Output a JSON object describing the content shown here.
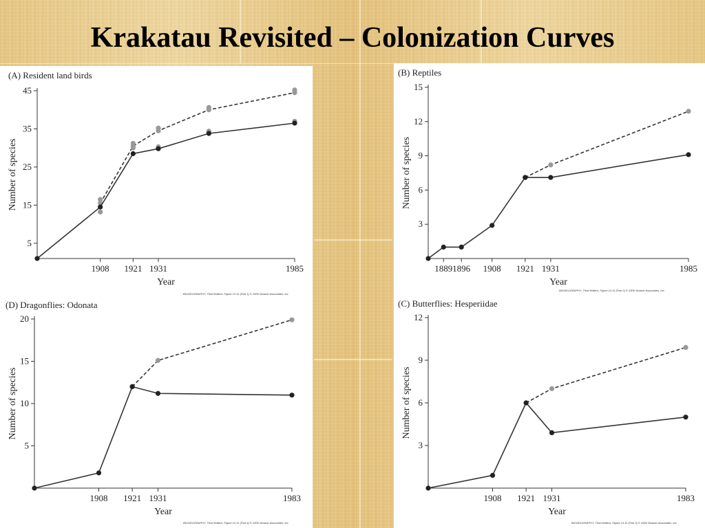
{
  "slide": {
    "title": "Krakatau Revisited – Colonization Curves"
  },
  "chart_data": [
    {
      "type": "line",
      "panel_label": "(A) Resident land birds",
      "xlabel": "Year",
      "ylabel": "Number of species",
      "x_ticks": [
        "1908",
        "1921",
        "1931",
        "1985"
      ],
      "y_ticks": [
        5,
        15,
        25,
        35,
        45
      ],
      "xlim": [
        1883,
        1985
      ],
      "ylim": [
        1,
        45
      ],
      "credit": "BIOGEOGRAPHY, Third Edition, Figure 13.11 (Part 1) © 2006 Sinauer Associates, Inc.",
      "series": [
        {
          "style": "dashed",
          "x": [
            1908,
            1921,
            1931,
            1951,
            1985
          ],
          "y": [
            15.5,
            30.5,
            34.5,
            40,
            44.5
          ],
          "point_colors": [
            "#999999",
            "#999999",
            "#999999",
            "#999999",
            "#999999"
          ],
          "extra_points": [
            [
              1908,
              16.5
            ],
            [
              1921,
              31.2
            ],
            [
              1931,
              35.2
            ],
            [
              1951,
              40.6
            ],
            [
              1985,
              45.2
            ]
          ]
        },
        {
          "style": "solid",
          "x": [
            1883,
            1908,
            1921,
            1931,
            1951,
            1985
          ],
          "y": [
            1,
            14.5,
            28.5,
            29.8,
            33.8,
            36.5
          ],
          "point_colors": [
            "#222222",
            "#222222",
            "#222222",
            "#222222",
            "#222222",
            "#222222"
          ],
          "extra_points": [
            [
              1908,
              13.2
            ],
            [
              1921,
              30
            ],
            [
              1931,
              30.3
            ],
            [
              1951,
              34.4
            ],
            [
              1985,
              37
            ]
          ]
        }
      ]
    },
    {
      "type": "line",
      "panel_label": "(B) Reptiles",
      "xlabel": "Year",
      "ylabel": "Number of species",
      "x_ticks": [
        "1889",
        "1896",
        "1908",
        "1921",
        "1931",
        "1985"
      ],
      "y_ticks": [
        3,
        6,
        9,
        12,
        15
      ],
      "xlim": [
        1883,
        1985
      ],
      "ylim": [
        0,
        15
      ],
      "credit": "BIOGEOGRAPHY, Third Edition, Figure 13.11 (Part 2) © 2006 Sinauer Associates, Inc.",
      "series": [
        {
          "style": "dashed",
          "x": [
            1921,
            1931,
            1985
          ],
          "y": [
            7.1,
            8.2,
            12.9
          ],
          "point_colors": [
            "#222222",
            "#999999",
            "#999999"
          ]
        },
        {
          "style": "solid",
          "x": [
            1883,
            1889,
            1896,
            1908,
            1921,
            1931,
            1985
          ],
          "y": [
            0,
            1,
            1,
            2.9,
            7.1,
            7.1,
            9.1
          ],
          "point_colors": [
            "#222222",
            "#222222",
            "#222222",
            "#222222",
            "#222222",
            "#222222",
            "#222222"
          ]
        }
      ]
    },
    {
      "type": "line",
      "panel_label": "(D) Dragonflies: Odonata",
      "xlabel": "Year",
      "ylabel": "Number of species",
      "x_ticks": [
        "1908",
        "1921",
        "1931",
        "1983"
      ],
      "y_ticks": [
        5,
        10,
        15,
        20
      ],
      "xlim": [
        1883,
        1983
      ],
      "ylim": [
        0,
        20
      ],
      "credit": "BIOGEOGRAPHY, Third Edition, Figure 13.11 (Part 4) © 2006 Sinauer Associates, Inc.",
      "series": [
        {
          "style": "dashed",
          "x": [
            1921,
            1931,
            1983
          ],
          "y": [
            12,
            15.1,
            19.9
          ],
          "point_colors": [
            "#222222",
            "#999999",
            "#999999"
          ]
        },
        {
          "style": "solid",
          "x": [
            1883,
            1908,
            1921,
            1931,
            1983
          ],
          "y": [
            0,
            1.8,
            12,
            11.2,
            11
          ],
          "point_colors": [
            "#222222",
            "#222222",
            "#222222",
            "#222222",
            "#222222"
          ]
        }
      ]
    },
    {
      "type": "line",
      "panel_label": "(C) Butterflies: Hesperiidae",
      "xlabel": "Year",
      "ylabel": "Number of species",
      "x_ticks": [
        "1908",
        "1921",
        "1931",
        "1983"
      ],
      "y_ticks": [
        3,
        6,
        9,
        12
      ],
      "xlim": [
        1883,
        1983
      ],
      "ylim": [
        0,
        12
      ],
      "credit": "BIOGEOGRAPHY, Third Edition, Figure 13.11 (Part 3) © 2006 Sinauer Associates, Inc.",
      "series": [
        {
          "style": "dashed",
          "x": [
            1921,
            1931,
            1983
          ],
          "y": [
            6,
            7,
            9.9
          ],
          "point_colors": [
            "#222222",
            "#999999",
            "#999999"
          ]
        },
        {
          "style": "solid",
          "x": [
            1883,
            1908,
            1921,
            1931,
            1983
          ],
          "y": [
            0,
            0.9,
            6,
            3.9,
            5
          ],
          "point_colors": [
            "#222222",
            "#222222",
            "#222222",
            "#222222",
            "#222222"
          ]
        }
      ]
    }
  ]
}
